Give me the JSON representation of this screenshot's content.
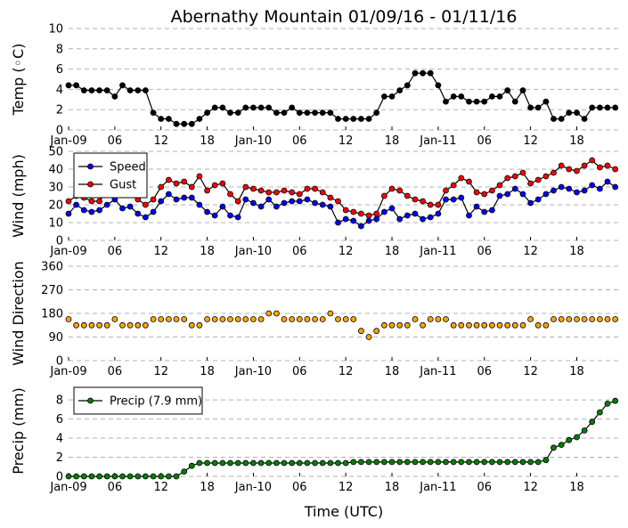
{
  "figure": {
    "title": "Abernathy Mountain 01/09/16 - 01/11/16",
    "xlabel": "Time (UTC)",
    "x_tick_labels": [
      "Jan-09",
      "06",
      "12",
      "18",
      "Jan-10",
      "06",
      "12",
      "18",
      "Jan-11",
      "06",
      "12",
      "18"
    ],
    "x_tick_hours": [
      0,
      6,
      12,
      18,
      24,
      30,
      36,
      42,
      48,
      54,
      60,
      66
    ],
    "x_range_hours": [
      0,
      71.5
    ]
  },
  "chart_data": [
    {
      "type": "line",
      "ylabel": "Temp (◦C)",
      "ylim": [
        0,
        10
      ],
      "yticks": [
        0,
        2,
        4,
        6,
        8,
        10
      ],
      "grid": true,
      "legend": null,
      "x_hours": [
        0,
        1,
        2,
        3,
        4,
        5,
        6,
        7,
        8,
        9,
        10,
        11,
        12,
        13,
        14,
        15,
        16,
        17,
        18,
        19,
        20,
        21,
        22,
        23,
        24,
        25,
        26,
        27,
        28,
        29,
        30,
        31,
        32,
        33,
        34,
        35,
        36,
        37,
        38,
        39,
        40,
        41,
        42,
        43,
        44,
        45,
        46,
        47,
        48,
        49,
        50,
        51,
        52,
        53,
        54,
        55,
        56,
        57,
        58,
        59,
        60,
        61,
        62,
        63,
        64,
        65,
        66,
        67,
        68,
        69,
        70,
        71
      ],
      "series": [
        {
          "color": "#000000",
          "values": [
            4.4,
            4.4,
            3.9,
            3.9,
            3.9,
            3.9,
            3.3,
            4.4,
            3.9,
            3.9,
            3.9,
            1.7,
            1.1,
            1.1,
            0.6,
            0.6,
            0.6,
            1.1,
            1.7,
            2.2,
            2.2,
            1.7,
            1.7,
            2.2,
            2.2,
            2.2,
            2.2,
            1.7,
            1.7,
            2.2,
            1.7,
            1.7,
            1.7,
            1.7,
            1.7,
            1.1,
            1.1,
            1.1,
            1.1,
            1.1,
            1.7,
            3.3,
            3.3,
            3.9,
            4.4,
            5.6,
            5.6,
            5.6,
            4.4,
            2.8,
            3.3,
            3.3,
            2.8,
            2.8,
            2.8,
            3.3,
            3.3,
            3.9,
            2.8,
            3.9,
            2.2,
            2.2,
            2.8,
            1.1,
            1.1,
            1.7,
            1.7,
            1.1,
            2.2,
            2.2,
            2.2,
            2.2
          ]
        }
      ]
    },
    {
      "type": "line",
      "ylabel": "Wind (mph)",
      "ylim": [
        0,
        50
      ],
      "yticks": [
        0,
        10,
        20,
        30,
        40,
        50
      ],
      "grid": true,
      "legend": "top-left",
      "x_hours": [
        0,
        1,
        2,
        3,
        4,
        5,
        6,
        7,
        8,
        9,
        10,
        11,
        12,
        13,
        14,
        15,
        16,
        17,
        18,
        19,
        20,
        21,
        22,
        23,
        24,
        25,
        26,
        27,
        28,
        29,
        30,
        31,
        32,
        33,
        34,
        35,
        36,
        37,
        38,
        39,
        40,
        41,
        42,
        43,
        44,
        45,
        46,
        47,
        48,
        49,
        50,
        51,
        52,
        53,
        54,
        55,
        56,
        57,
        58,
        59,
        60,
        61,
        62,
        63,
        64,
        65,
        66,
        67,
        68,
        69,
        70,
        71
      ],
      "series": [
        {
          "name": "Speed",
          "color": "#0000ff",
          "values": [
            15,
            20,
            17,
            16,
            17,
            20,
            23,
            18,
            19,
            15,
            13,
            16,
            22,
            26,
            23,
            24,
            24,
            20,
            16,
            14,
            19,
            14,
            13,
            23,
            21,
            19,
            23,
            19,
            21,
            22,
            22,
            23,
            21,
            20,
            19,
            10,
            12,
            11,
            8,
            11,
            12,
            16,
            18,
            12,
            14,
            15,
            12,
            13,
            15,
            23,
            23,
            24,
            14,
            19,
            16,
            17,
            25,
            26,
            29,
            26,
            21,
            23,
            26,
            28,
            30,
            29,
            27,
            28,
            31,
            29,
            33,
            30
          ]
        },
        {
          "name": "Gust",
          "color": "#ff0000",
          "values": [
            22,
            25,
            24,
            22,
            22,
            28,
            29,
            28,
            26,
            23,
            20,
            23,
            30,
            34,
            32,
            33,
            30,
            36,
            28,
            31,
            32,
            26,
            22,
            30,
            29,
            28,
            27,
            27,
            28,
            27,
            26,
            29,
            29,
            27,
            24,
            22,
            17,
            16,
            15,
            14,
            15,
            25,
            29,
            28,
            25,
            23,
            22,
            20,
            20,
            28,
            31,
            35,
            33,
            27,
            26,
            28,
            31,
            35,
            36,
            38,
            32,
            34,
            36,
            38,
            42,
            40,
            39,
            42,
            45,
            41,
            42,
            40
          ]
        }
      ]
    },
    {
      "type": "scatter",
      "ylabel": "Wind Direction",
      "ylim": [
        0,
        360
      ],
      "yticks": [
        0,
        90,
        180,
        270,
        360
      ],
      "grid": true,
      "legend": null,
      "x_hours": [
        0,
        1,
        2,
        3,
        4,
        5,
        6,
        7,
        8,
        9,
        10,
        11,
        12,
        13,
        14,
        15,
        16,
        17,
        18,
        19,
        20,
        21,
        22,
        23,
        24,
        25,
        26,
        27,
        28,
        29,
        30,
        31,
        32,
        33,
        34,
        35,
        36,
        37,
        38,
        39,
        40,
        41,
        42,
        43,
        44,
        45,
        46,
        47,
        48,
        49,
        50,
        51,
        52,
        53,
        54,
        55,
        56,
        57,
        58,
        59,
        60,
        61,
        62,
        63,
        64,
        65,
        66,
        67,
        68,
        69,
        70,
        71
      ],
      "series": [
        {
          "color": "#ffa500",
          "values": [
            158,
            135,
            135,
            135,
            135,
            135,
            158,
            135,
            135,
            135,
            135,
            158,
            158,
            158,
            158,
            158,
            135,
            135,
            158,
            158,
            158,
            158,
            158,
            158,
            158,
            158,
            180,
            180,
            158,
            158,
            158,
            158,
            158,
            158,
            180,
            158,
            158,
            158,
            113,
            90,
            113,
            135,
            135,
            135,
            135,
            158,
            135,
            158,
            158,
            158,
            135,
            135,
            135,
            135,
            135,
            135,
            135,
            135,
            135,
            135,
            158,
            135,
            135,
            158,
            158,
            158,
            158,
            158,
            158,
            158,
            158,
            158
          ]
        }
      ]
    },
    {
      "type": "line",
      "ylabel": "Precip (mm)",
      "ylim": [
        0,
        9.5
      ],
      "yticks": [
        0,
        2,
        4,
        6,
        8
      ],
      "grid": true,
      "legend": "top-left",
      "x_hours": [
        0,
        1,
        2,
        3,
        4,
        5,
        6,
        7,
        8,
        9,
        10,
        11,
        12,
        13,
        14,
        15,
        16,
        17,
        18,
        19,
        20,
        21,
        22,
        23,
        24,
        25,
        26,
        27,
        28,
        29,
        30,
        31,
        32,
        33,
        34,
        35,
        36,
        37,
        38,
        39,
        40,
        41,
        42,
        43,
        44,
        45,
        46,
        47,
        48,
        49,
        50,
        51,
        52,
        53,
        54,
        55,
        56,
        57,
        58,
        59,
        60,
        61,
        62,
        63,
        64,
        65,
        66,
        67,
        68,
        69,
        70,
        71
      ],
      "series": [
        {
          "name": "Precip (7.9 mm)",
          "color": "#008000",
          "values": [
            0,
            0,
            0,
            0,
            0,
            0,
            0,
            0,
            0,
            0,
            0,
            0,
            0,
            0,
            0,
            0.5,
            1.1,
            1.4,
            1.4,
            1.4,
            1.4,
            1.4,
            1.4,
            1.4,
            1.4,
            1.4,
            1.4,
            1.4,
            1.4,
            1.4,
            1.4,
            1.4,
            1.4,
            1.4,
            1.4,
            1.4,
            1.4,
            1.5,
            1.5,
            1.5,
            1.5,
            1.5,
            1.5,
            1.5,
            1.5,
            1.5,
            1.5,
            1.5,
            1.5,
            1.5,
            1.5,
            1.5,
            1.5,
            1.5,
            1.5,
            1.5,
            1.5,
            1.5,
            1.5,
            1.5,
            1.5,
            1.5,
            1.7,
            3.0,
            3.3,
            3.8,
            4.1,
            4.8,
            5.7,
            6.7,
            7.6,
            7.9
          ]
        }
      ]
    }
  ]
}
